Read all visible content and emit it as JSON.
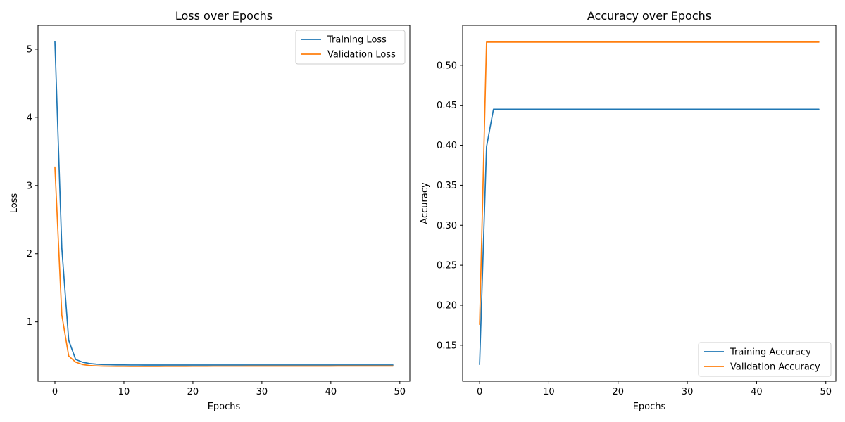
{
  "chart_data": [
    {
      "type": "line",
      "title": "Loss over Epochs",
      "xlabel": "Epochs",
      "ylabel": "Loss",
      "xlim": [
        -2.45,
        51.45
      ],
      "ylim": [
        0.13,
        5.35
      ],
      "xticks": [
        0,
        10,
        20,
        30,
        40,
        50
      ],
      "yticks": [
        1,
        2,
        3,
        4,
        5
      ],
      "legend": "top-right",
      "x": [
        0,
        1,
        2,
        3,
        4,
        5,
        6,
        7,
        8,
        9,
        10,
        11,
        12,
        13,
        14,
        15,
        16,
        17,
        18,
        19,
        20,
        21,
        22,
        23,
        24,
        25,
        26,
        27,
        28,
        29,
        30,
        31,
        32,
        33,
        34,
        35,
        36,
        37,
        38,
        39,
        40,
        41,
        42,
        43,
        44,
        45,
        46,
        47,
        48,
        49
      ],
      "series": [
        {
          "name": "Training Loss",
          "color": "#1f77b4",
          "values": [
            5.11,
            2.08,
            0.73,
            0.45,
            0.41,
            0.39,
            0.38,
            0.375,
            0.372,
            0.37,
            0.369,
            0.368,
            0.368,
            0.367,
            0.367,
            0.367,
            0.367,
            0.367,
            0.367,
            0.367,
            0.367,
            0.367,
            0.367,
            0.367,
            0.367,
            0.367,
            0.367,
            0.367,
            0.367,
            0.367,
            0.367,
            0.367,
            0.367,
            0.367,
            0.367,
            0.367,
            0.367,
            0.367,
            0.367,
            0.367,
            0.367,
            0.367,
            0.367,
            0.367,
            0.367,
            0.367,
            0.367,
            0.367,
            0.367,
            0.367
          ]
        },
        {
          "name": "Validation Loss",
          "color": "#ff7f0e",
          "values": [
            3.27,
            1.1,
            0.5,
            0.41,
            0.375,
            0.36,
            0.355,
            0.352,
            0.35,
            0.349,
            0.349,
            0.348,
            0.348,
            0.348,
            0.348,
            0.348,
            0.349,
            0.349,
            0.349,
            0.349,
            0.35,
            0.35,
            0.35,
            0.351,
            0.351,
            0.351,
            0.351,
            0.351,
            0.352,
            0.352,
            0.352,
            0.352,
            0.352,
            0.352,
            0.352,
            0.352,
            0.352,
            0.352,
            0.352,
            0.352,
            0.352,
            0.353,
            0.353,
            0.353,
            0.353,
            0.353,
            0.353,
            0.353,
            0.353,
            0.353
          ]
        }
      ]
    },
    {
      "type": "line",
      "title": "Accuracy over Epochs",
      "xlabel": "Epochs",
      "ylabel": "Accuracy",
      "xlim": [
        -2.45,
        51.45
      ],
      "ylim": [
        0.105,
        0.55
      ],
      "xticks": [
        0,
        10,
        20,
        30,
        40,
        50
      ],
      "yticks": [
        0.15,
        0.2,
        0.25,
        0.3,
        0.35,
        0.4,
        0.45,
        0.5
      ],
      "ytick_labels": [
        "0.15",
        "0.20",
        "0.25",
        "0.30",
        "0.35",
        "0.40",
        "0.45",
        "0.50"
      ],
      "legend": "bottom-right",
      "x": [
        0,
        1,
        2,
        3,
        4,
        5,
        6,
        7,
        8,
        9,
        10,
        11,
        12,
        13,
        14,
        15,
        16,
        17,
        18,
        19,
        20,
        21,
        22,
        23,
        24,
        25,
        26,
        27,
        28,
        29,
        30,
        31,
        32,
        33,
        34,
        35,
        36,
        37,
        38,
        39,
        40,
        41,
        42,
        43,
        44,
        45,
        46,
        47,
        48,
        49
      ],
      "series": [
        {
          "name": "Training Accuracy",
          "color": "#1f77b4",
          "values": [
            0.126,
            0.398,
            0.445,
            0.445,
            0.445,
            0.445,
            0.445,
            0.445,
            0.445,
            0.445,
            0.445,
            0.445,
            0.445,
            0.445,
            0.445,
            0.445,
            0.445,
            0.445,
            0.445,
            0.445,
            0.445,
            0.445,
            0.445,
            0.445,
            0.445,
            0.445,
            0.445,
            0.445,
            0.445,
            0.445,
            0.445,
            0.445,
            0.445,
            0.445,
            0.445,
            0.445,
            0.445,
            0.445,
            0.445,
            0.445,
            0.445,
            0.445,
            0.445,
            0.445,
            0.445,
            0.445,
            0.445,
            0.445,
            0.445,
            0.445
          ]
        },
        {
          "name": "Validation Accuracy",
          "color": "#ff7f0e",
          "values": [
            0.176,
            0.529,
            0.529,
            0.529,
            0.529,
            0.529,
            0.529,
            0.529,
            0.529,
            0.529,
            0.529,
            0.529,
            0.529,
            0.529,
            0.529,
            0.529,
            0.529,
            0.529,
            0.529,
            0.529,
            0.529,
            0.529,
            0.529,
            0.529,
            0.529,
            0.529,
            0.529,
            0.529,
            0.529,
            0.529,
            0.529,
            0.529,
            0.529,
            0.529,
            0.529,
            0.529,
            0.529,
            0.529,
            0.529,
            0.529,
            0.529,
            0.529,
            0.529,
            0.529,
            0.529,
            0.529,
            0.529,
            0.529,
            0.529,
            0.529
          ]
        }
      ]
    }
  ]
}
